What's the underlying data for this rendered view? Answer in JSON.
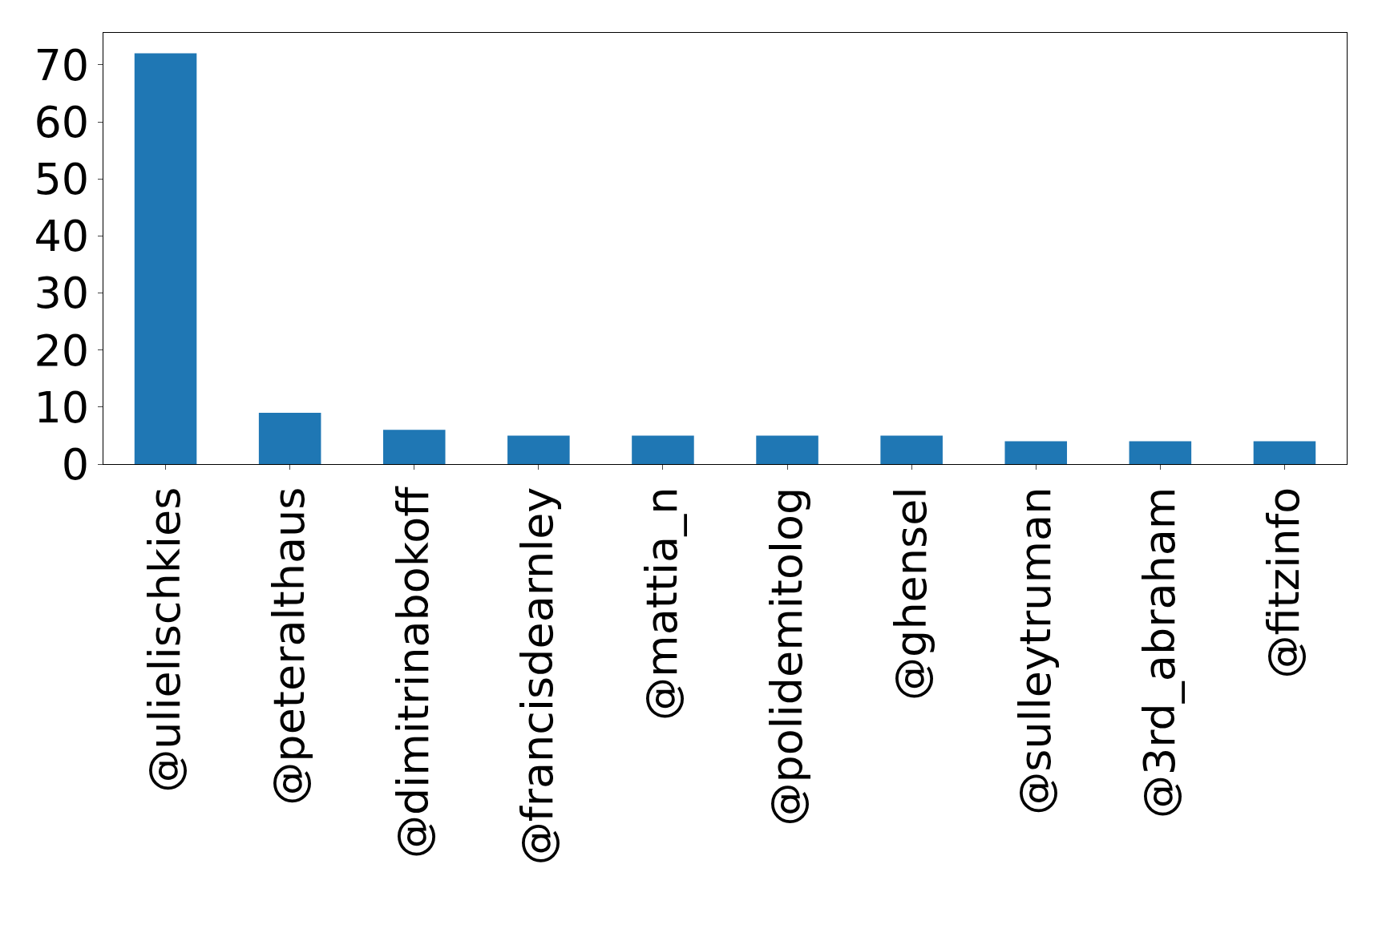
{
  "chart_data": {
    "type": "bar",
    "categories": [
      "@ulielischkies",
      "@peteralthaus",
      "@dimitrinabokoff",
      "@francisdearnley",
      "@mattia_n",
      "@polidemitolog",
      "@ghensel",
      "@sulleytruman",
      "@3rd_abraham",
      "@fitzinfo"
    ],
    "values": [
      72,
      9,
      6,
      5,
      5,
      5,
      5,
      4,
      4,
      4
    ],
    "color": "#1f77b4",
    "ylim": [
      0,
      75.6
    ],
    "yticks": [
      0,
      10,
      20,
      30,
      40,
      50,
      60,
      70
    ]
  }
}
